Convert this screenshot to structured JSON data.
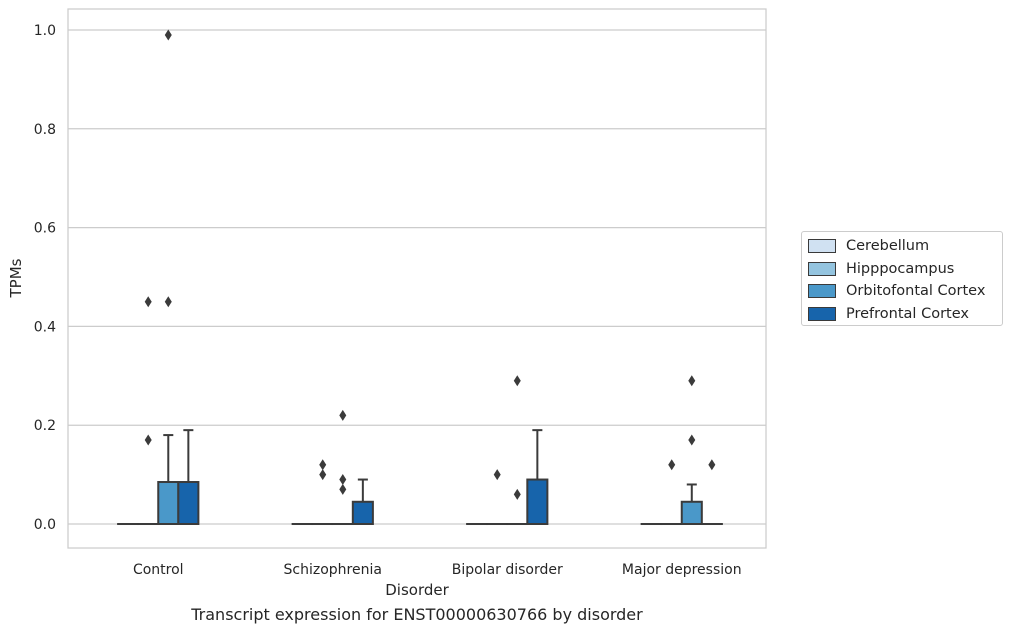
{
  "chart_data": {
    "type": "box",
    "xlabel": "Disorder",
    "ylabel": "TPMs",
    "ylim": [
      -0.05,
      1.04
    ],
    "yticks": [
      "0.0",
      "0.2",
      "0.4",
      "0.6",
      "0.8",
      "1.0"
    ],
    "grid": "horizontal",
    "legend_placement": "right",
    "categories": [
      "Control",
      "Schizophrenia",
      "Bipolar disorder",
      "Major depression"
    ],
    "series": [
      {
        "name": "Cerebellum",
        "color": "#d0e1f2",
        "boxes": [
          {
            "q1": 0,
            "median": 0,
            "q3": 0,
            "whisker_low": 0,
            "whisker_high": 0,
            "outliers": []
          },
          {
            "q1": 0,
            "median": 0,
            "q3": 0,
            "whisker_low": 0,
            "whisker_high": 0,
            "outliers": []
          },
          {
            "q1": 0,
            "median": 0,
            "q3": 0,
            "whisker_low": 0,
            "whisker_high": 0,
            "outliers": []
          },
          {
            "q1": 0,
            "median": 0,
            "q3": 0,
            "whisker_low": 0,
            "whisker_high": 0,
            "outliers": []
          }
        ]
      },
      {
        "name": "Hipppocampus",
        "color": "#94c4df",
        "boxes": [
          {
            "q1": 0,
            "median": 0,
            "q3": 0,
            "whisker_low": 0,
            "whisker_high": 0,
            "outliers": [
              0.17,
              0.45
            ]
          },
          {
            "q1": 0,
            "median": 0,
            "q3": 0,
            "whisker_low": 0,
            "whisker_high": 0,
            "outliers": [
              0.1,
              0.12
            ]
          },
          {
            "q1": 0,
            "median": 0,
            "q3": 0,
            "whisker_low": 0,
            "whisker_high": 0,
            "outliers": [
              0.1
            ]
          },
          {
            "q1": 0,
            "median": 0,
            "q3": 0,
            "whisker_low": 0,
            "whisker_high": 0,
            "outliers": [
              0.12
            ]
          }
        ]
      },
      {
        "name": "Orbitofontal Cortex",
        "color": "#4a98c9",
        "boxes": [
          {
            "q1": 0,
            "median": 0,
            "q3": 0.085,
            "whisker_low": 0,
            "whisker_high": 0.18,
            "outliers": [
              0.45,
              0.99
            ]
          },
          {
            "q1": 0,
            "median": 0,
            "q3": 0,
            "whisker_low": 0,
            "whisker_high": 0,
            "outliers": [
              0.07,
              0.09,
              0.22
            ]
          },
          {
            "q1": 0,
            "median": 0,
            "q3": 0,
            "whisker_low": 0,
            "whisker_high": 0,
            "outliers": [
              0.06,
              0.29
            ]
          },
          {
            "q1": 0,
            "median": 0,
            "q3": 0.045,
            "whisker_low": 0,
            "whisker_high": 0.08,
            "outliers": [
              0.17,
              0.29
            ]
          }
        ]
      },
      {
        "name": "Prefrontal Cortex",
        "color": "#1764ab",
        "boxes": [
          {
            "q1": 0,
            "median": 0,
            "q3": 0.085,
            "whisker_low": 0,
            "whisker_high": 0.19,
            "outliers": []
          },
          {
            "q1": 0,
            "median": 0,
            "q3": 0.045,
            "whisker_low": 0,
            "whisker_high": 0.09,
            "outliers": []
          },
          {
            "q1": 0,
            "median": 0,
            "q3": 0.09,
            "whisker_low": 0,
            "whisker_high": 0.19,
            "outliers": []
          },
          {
            "q1": 0,
            "median": 0,
            "q3": 0,
            "whisker_low": 0,
            "whisker_high": 0,
            "outliers": [
              0.12
            ]
          }
        ]
      }
    ]
  },
  "caption": "Transcript expression for ENST00000630766 by disorder"
}
